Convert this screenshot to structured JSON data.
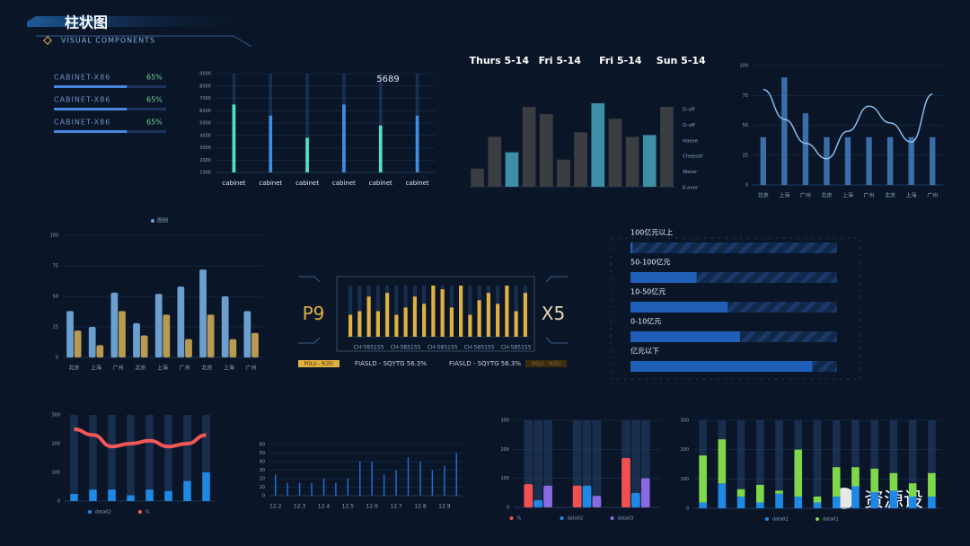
{
  "header": {
    "title": "柱状图",
    "subtitle": "VISUAL COMPONENTS"
  },
  "watermark": "资源设",
  "chart_data": [
    {
      "type": "progress",
      "labels": [
        "CABINET-X86",
        "CABINET-X86",
        "CABINET-X86"
      ],
      "values": [
        65,
        65,
        65
      ],
      "value_labels": [
        "65%",
        "65%",
        "65%"
      ],
      "color": "#4a86e0"
    },
    {
      "type": "bar",
      "categories": [
        "cabinet",
        "cabinet",
        "cabinet",
        "cabinet",
        "cabinet",
        "cabinet"
      ],
      "values": [
        6500,
        5600,
        3800,
        6500,
        4800,
        5600
      ],
      "colors": [
        "#4fe3c1",
        "#3d8fe0",
        "#4fe3c1",
        "#3d8fe0",
        "#4fe3c1",
        "#3d8fe0"
      ],
      "ylim": [
        1000,
        9000
      ],
      "yticks": [
        1000,
        2000,
        3000,
        4000,
        5000,
        6000,
        7000,
        8000,
        9000
      ],
      "grid": true,
      "track": true,
      "annotation": "5689"
    },
    {
      "type": "bar",
      "headers": [
        "Thurs 5-14",
        "Fri 5-14",
        "Fri 5-14",
        "Sun 5-14"
      ],
      "right_labels": [
        "D-off",
        "O-off",
        "Haese",
        "Cheesdt",
        "Water",
        "K-aver"
      ],
      "values": [
        20,
        55,
        38,
        88,
        80,
        30,
        60,
        92,
        75,
        55,
        57,
        88
      ],
      "colors": [
        "#3a3d42",
        "#3a3d42",
        "#3d8fa8",
        "#3a3d42",
        "#3a3d42",
        "#3a3d42",
        "#3a3d42",
        "#3d8fa8",
        "#3a3d42",
        "#3a3d42",
        "#3d8fa8",
        "#3a3d42"
      ]
    },
    {
      "type": "bar",
      "categories": [
        "北京",
        "上海",
        "广州",
        "北京",
        "上海",
        "广州",
        "北京",
        "上海",
        "广州"
      ],
      "ylim": [
        0,
        100
      ],
      "yticks": [
        0,
        25,
        50,
        75,
        100
      ],
      "grid": true,
      "series": [
        {
          "color": "#3a6ea8",
          "values": [
            40,
            90,
            60,
            40,
            40,
            40,
            40,
            40,
            40
          ]
        },
        {
          "kind": "line",
          "color": "#8fc3f0",
          "values": [
            80,
            55,
            35,
            22,
            45,
            66,
            52,
            36,
            76
          ]
        }
      ]
    },
    {
      "type": "bar",
      "legend": "图例",
      "categories": [
        "北京",
        "上海",
        "广州",
        "北京",
        "上海",
        "广州",
        "北京",
        "上海",
        "广州"
      ],
      "ylim": [
        0,
        100
      ],
      "yticks": [
        0,
        25,
        50,
        75,
        100
      ],
      "grid": true,
      "grouped": true,
      "series": [
        {
          "color": "#6a9fd0",
          "values": [
            38,
            25,
            53,
            28,
            52,
            58,
            72,
            50,
            38
          ]
        },
        {
          "color": "#b89a50",
          "values": [
            22,
            10,
            38,
            18,
            35,
            15,
            35,
            15,
            20
          ]
        }
      ]
    },
    {
      "type": "bar",
      "left_label": "P9",
      "right_label": "X5",
      "footer": [
        "POLLI - 9(35)",
        "FIASLD - SQYTG 56.3%",
        "FIASLD - SQYTG 56.3%",
        "POLLI - 9(35)"
      ],
      "categories": [
        null,
        null,
        "CH-585155",
        null,
        null,
        null,
        "CH-585155",
        null,
        null,
        null,
        "CH-585155",
        null,
        null,
        null,
        "CH-585155",
        null,
        null,
        null,
        "CH-585155",
        null
      ],
      "values": [
        30,
        35,
        55,
        35,
        60,
        30,
        40,
        55,
        45,
        70,
        65,
        40,
        70,
        30,
        50,
        60,
        45,
        70,
        35,
        60
      ],
      "color": "#e0b040",
      "track": true
    },
    {
      "type": "hprogress",
      "labels": [
        "100亿元以上",
        "50-100亿元",
        "10-50亿元",
        "0-10亿元",
        "亿元以下"
      ],
      "values": [
        1,
        32,
        47,
        53,
        88
      ],
      "color": "#1f5fb8"
    },
    {
      "type": "bar",
      "categories": [
        null,
        null,
        null,
        null,
        null,
        null,
        null,
        null
      ],
      "ylim": [
        0,
        300
      ],
      "yticks": [
        0,
        100,
        200,
        300
      ],
      "track": true,
      "series": [
        {
          "name": "data02",
          "color": "#1e88e5",
          "values": [
            25,
            40,
            40,
            20,
            40,
            35,
            70,
            100
          ]
        },
        {
          "name": "%",
          "kind": "line",
          "color": "#ff5a5a",
          "values": [
            250,
            230,
            190,
            200,
            210,
            190,
            200,
            230
          ]
        }
      ]
    },
    {
      "type": "bar",
      "categories": [
        "12.2",
        null,
        "12.3",
        null,
        "12.4",
        null,
        "12.5",
        null,
        "12.6",
        null,
        "12.7",
        null,
        "12.8",
        null,
        "12.9",
        null
      ],
      "values": [
        25,
        15,
        15,
        15,
        20,
        15,
        20,
        40,
        40,
        25,
        30,
        45,
        40,
        30,
        35,
        50
      ],
      "color": "#1e6fd0",
      "ylim": [
        0,
        60
      ],
      "yticks": [
        0,
        10,
        20,
        30,
        40,
        50,
        60
      ],
      "grid": true
    },
    {
      "type": "bar",
      "categories": [
        null,
        null,
        null
      ],
      "ylim": [
        0,
        300
      ],
      "yticks": [
        0,
        100,
        200,
        300
      ],
      "grid": true,
      "grouped": true,
      "track": true,
      "series": [
        {
          "name": "%",
          "color": "#f05050",
          "values": [
            80,
            75,
            170
          ]
        },
        {
          "name": "data02",
          "color": "#1e88e5",
          "values": [
            25,
            75,
            50
          ]
        },
        {
          "name": "data03",
          "color": "#8a6ae0",
          "values": [
            75,
            40,
            100
          ]
        }
      ]
    },
    {
      "type": "bar",
      "categories": [
        null,
        null,
        null,
        null,
        null,
        null,
        null,
        null,
        null,
        null,
        null,
        null,
        null
      ],
      "ylim": [
        0,
        300
      ],
      "yticks": [
        0,
        100,
        200,
        300
      ],
      "grid": true,
      "stacked": true,
      "track": true,
      "series": [
        {
          "name": "data02",
          "color": "#1e88e5",
          "values": [
            20,
            85,
            40,
            20,
            50,
            40,
            20,
            40,
            75,
            55,
            60,
            40,
            40
          ]
        },
        {
          "name": "data01",
          "color": "#7fd84a",
          "values": [
            160,
            150,
            25,
            60,
            10,
            160,
            20,
            100,
            65,
            80,
            60,
            45,
            80
          ]
        }
      ]
    }
  ]
}
